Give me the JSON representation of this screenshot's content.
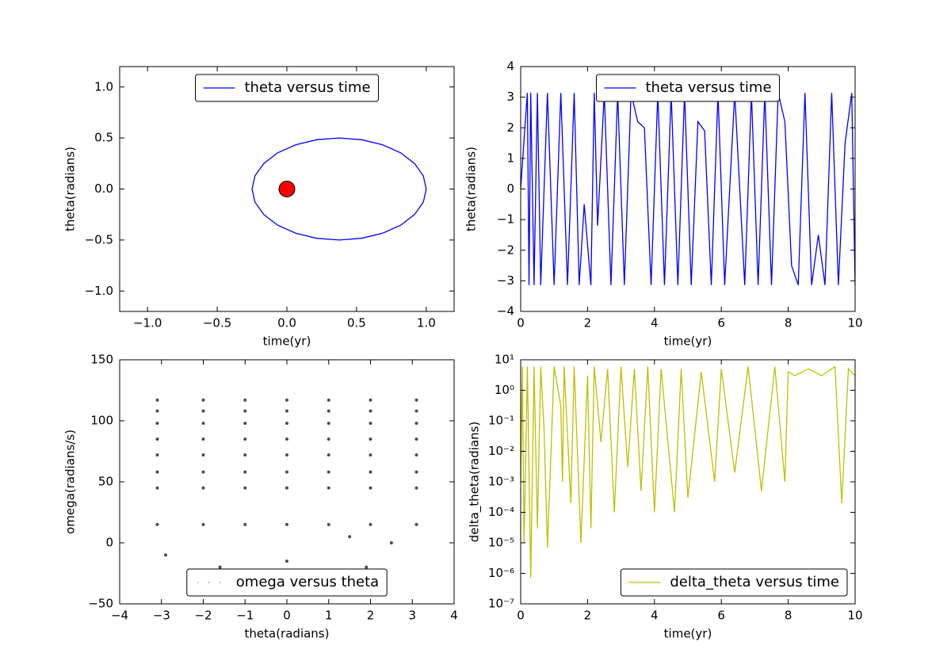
{
  "chart_data": [
    {
      "type": "line",
      "xlabel": "time(yr)",
      "ylabel": "theta(radians)",
      "legend": "upper center",
      "xlim": [
        -1.2,
        1.2
      ],
      "ylim": [
        -1.2,
        1.2
      ],
      "xticks": [
        {
          "value": -1,
          "label": "−1.0"
        },
        {
          "value": -0.5,
          "label": "−0.5"
        },
        {
          "value": 0,
          "label": "0.0"
        },
        {
          "value": 0.5,
          "label": "0.5"
        },
        {
          "value": 1,
          "label": "1.0"
        }
      ],
      "yticks": [
        {
          "value": -1,
          "label": "−1.0"
        },
        {
          "value": -0.5,
          "label": "−0.5"
        },
        {
          "value": 0,
          "label": "0.0"
        },
        {
          "value": 0.5,
          "label": "0.5"
        },
        {
          "value": 1,
          "label": "1.0"
        }
      ],
      "series": [
        {
          "name": "theta versus time",
          "color": "#0000ff",
          "x": [
            1.0,
            0.979,
            0.916,
            0.817,
            0.688,
            0.537,
            0.375,
            0.213,
            0.063,
            -0.067,
            -0.166,
            -0.229,
            -0.25,
            -0.229,
            -0.166,
            -0.067,
            0.063,
            0.213,
            0.375,
            0.537,
            0.688,
            0.817,
            0.916,
            0.979,
            1.0
          ],
          "values": [
            0,
            0.129,
            0.25,
            0.354,
            0.433,
            0.483,
            0.5,
            0.483,
            0.433,
            0.354,
            0.25,
            0.129,
            0,
            -0.129,
            -0.25,
            -0.354,
            -0.433,
            -0.483,
            -0.5,
            -0.483,
            -0.433,
            -0.354,
            -0.25,
            -0.129,
            0
          ]
        }
      ],
      "marker": {
        "x": 0,
        "y": 0,
        "color": "#ff0000"
      }
    },
    {
      "type": "line",
      "xlabel": "time(yr)",
      "ylabel": "theta(radians)",
      "legend": "upper center",
      "xlim": [
        0,
        10
      ],
      "ylim": [
        -4,
        4
      ],
      "xticks": [
        0,
        2,
        4,
        6,
        8,
        10
      ],
      "yticks": [
        {
          "value": -4,
          "label": "−4"
        },
        {
          "value": -3,
          "label": "−3"
        },
        {
          "value": -2,
          "label": "−2"
        },
        {
          "value": -1,
          "label": "−1"
        },
        0,
        1,
        2,
        3,
        4
      ],
      "series": [
        {
          "name": "theta versus time",
          "color": "#0000ff",
          "x": [
            0,
            0.1,
            0.2,
            0.25,
            0.3,
            0.4,
            0.5,
            0.6,
            0.8,
            1.0,
            1.2,
            1.4,
            1.6,
            1.75,
            1.9,
            2.1,
            2.2,
            2.3,
            2.5,
            2.7,
            2.9,
            3.1,
            3.3,
            3.5,
            3.7,
            3.9,
            4.1,
            4.3,
            4.5,
            4.7,
            4.9,
            5.1,
            5.3,
            5.5,
            5.7,
            5.9,
            6.1,
            6.4,
            6.7,
            6.9,
            7.1,
            7.3,
            7.5,
            7.7,
            7.9,
            8.1,
            8.3,
            8.5,
            8.7,
            8.9,
            9.1,
            9.3,
            9.5,
            9.7,
            9.9,
            10
          ],
          "values": [
            0,
            1.6,
            3.14,
            -3.14,
            3.14,
            -3.14,
            3.14,
            -3.14,
            3.14,
            -3.14,
            3.14,
            -3.14,
            3.14,
            -3.14,
            -0.5,
            -3.14,
            3.14,
            -1.2,
            3.14,
            -3.14,
            3.14,
            -3.14,
            3.14,
            2.2,
            2.0,
            -3.14,
            3.14,
            -3.14,
            3.14,
            -3.14,
            3.14,
            -3.14,
            2.2,
            1.9,
            -3.14,
            3.14,
            -3.14,
            3.14,
            -3.14,
            3.14,
            -3.14,
            3.14,
            -3.14,
            3.14,
            2.2,
            -2.5,
            -3.14,
            3.14,
            -3.14,
            -1.5,
            -3.14,
            3.14,
            -3.14,
            1.5,
            3.14,
            -3.14
          ]
        }
      ]
    },
    {
      "type": "scatter",
      "xlabel": "theta(radians)",
      "ylabel": "omega(radians/s)",
      "legend": "lower center",
      "xlim": [
        -4,
        4
      ],
      "ylim": [
        -50,
        150
      ],
      "xticks": [
        {
          "value": -4,
          "label": "−4"
        },
        {
          "value": -3,
          "label": "−3"
        },
        {
          "value": -2,
          "label": "−2"
        },
        {
          "value": -1,
          "label": "−1"
        },
        0,
        1,
        2,
        3,
        4
      ],
      "yticks": [
        {
          "value": -50,
          "label": "−50"
        },
        0,
        50,
        100,
        150
      ],
      "series": [
        {
          "name": "omega versus theta",
          "color": "#000000",
          "x": [
            -3.1,
            -2,
            -1,
            0,
            1,
            2,
            3.1,
            -3.1,
            -2,
            -1,
            0,
            1,
            2,
            3.1,
            -3.1,
            -2,
            -1,
            0,
            1,
            2,
            3.1,
            -3.1,
            -2,
            -1,
            0,
            1,
            2,
            3.1,
            -3.1,
            -2,
            -1,
            0,
            1,
            2,
            3.1,
            -3.1,
            -2,
            -1,
            0,
            1,
            2,
            3.1,
            -3.1,
            -2,
            -1,
            0,
            1,
            2,
            3.1,
            -3.1,
            -2,
            -1,
            0,
            1,
            2,
            3.1,
            -2.9,
            -1.6,
            0,
            1.5,
            2.5,
            1.9
          ],
          "values": [
            117,
            117,
            117,
            117,
            117,
            117,
            117,
            108,
            108,
            108,
            108,
            108,
            108,
            108,
            98,
            98,
            98,
            98,
            98,
            98,
            98,
            85,
            85,
            85,
            85,
            85,
            85,
            85,
            72,
            72,
            72,
            72,
            72,
            72,
            72,
            58,
            58,
            58,
            58,
            58,
            58,
            58,
            45,
            45,
            45,
            45,
            45,
            45,
            45,
            15,
            15,
            15,
            15,
            15,
            15,
            15,
            -10,
            -20,
            -15,
            5,
            0,
            -20
          ]
        }
      ]
    },
    {
      "type": "line",
      "xlabel": "time(yr)",
      "ylabel": "delta_theta(radians)",
      "legend": "lower right",
      "yscale": "log",
      "xlim": [
        0,
        10
      ],
      "ylim": [
        1e-07,
        10
      ],
      "xticks": [
        0,
        2,
        4,
        6,
        8,
        10
      ],
      "yticks": [
        {
          "value": 1e-07,
          "label": "10⁻⁷"
        },
        {
          "value": 1e-06,
          "label": "10⁻⁶"
        },
        {
          "value": 1e-05,
          "label": "10⁻⁵"
        },
        {
          "value": 0.0001,
          "label": "10⁻⁴"
        },
        {
          "value": 0.001,
          "label": "10⁻³"
        },
        {
          "value": 0.01,
          "label": "10⁻²"
        },
        {
          "value": 0.1,
          "label": "10⁻¹"
        },
        {
          "value": 1,
          "label": "10⁰"
        },
        {
          "value": 10,
          "label": "10¹"
        }
      ],
      "series": [
        {
          "name": "delta_theta versus time",
          "color": "#bfbf00",
          "x": [
            0,
            0.05,
            0.1,
            0.15,
            0.2,
            0.3,
            0.4,
            0.5,
            0.6,
            0.7,
            0.8,
            1.0,
            1.2,
            1.25,
            1.3,
            1.5,
            1.6,
            1.8,
            2.0,
            2.1,
            2.2,
            2.4,
            2.6,
            2.8,
            3.0,
            3.2,
            3.4,
            3.6,
            3.8,
            4.0,
            4.2,
            4.6,
            4.8,
            5.0,
            5.4,
            5.8,
            6.0,
            6.4,
            6.8,
            7.2,
            7.6,
            7.9,
            8.0,
            8.2,
            8.6,
            9.0,
            9.4,
            9.6,
            9.8,
            10
          ],
          "values": [
            0.001,
            6,
            1e-05,
            0.005,
            6,
            7e-07,
            6,
            3e-05,
            6,
            0.05,
            7e-06,
            6,
            0.3,
            0.001,
            6,
            0.0002,
            6,
            1e-05,
            3,
            3e-05,
            6,
            0.02,
            5,
            0.0001,
            6,
            0.003,
            5,
            0.0005,
            6,
            0.0001,
            5,
            0.0001,
            5,
            0.0003,
            4,
            0.001,
            5,
            0.002,
            6,
            0.0005,
            6,
            0.001,
            4,
            3,
            5,
            3,
            6,
            0.0002,
            5,
            3
          ]
        }
      ]
    }
  ]
}
